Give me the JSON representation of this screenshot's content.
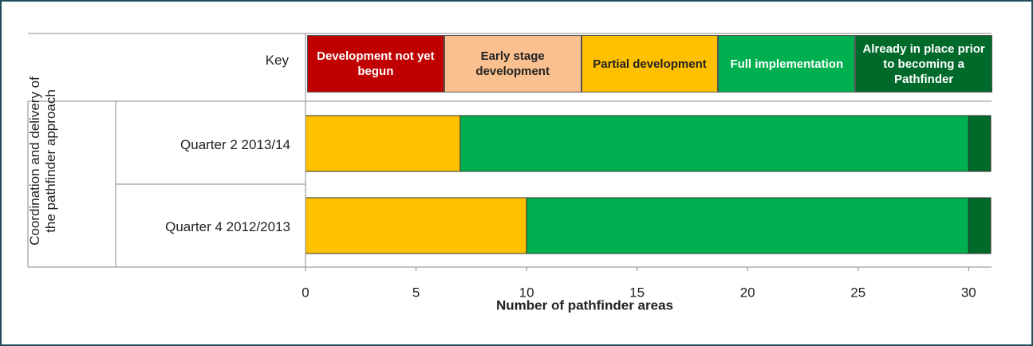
{
  "chart_data": {
    "type": "stacked_barh",
    "key_label": "Key",
    "group_label": "Coordination and delivery of the pathfinder approach",
    "categories": [
      "Quarter 2 2013/14",
      "Quarter 4  2012/2013"
    ],
    "series": [
      {
        "name": "Development not yet begun",
        "color": "#c00000",
        "text_color": "#ffffff",
        "values": [
          0,
          0
        ]
      },
      {
        "name": "Early stage development",
        "color": "#fac090",
        "text_color": "#222222",
        "values": [
          0,
          0
        ]
      },
      {
        "name": "Partial development",
        "color": "#ffc000",
        "text_color": "#222222",
        "values": [
          7,
          10
        ]
      },
      {
        "name": "Full implementation",
        "color": "#00b050",
        "text_color": "#ffffff",
        "values": [
          23,
          20
        ]
      },
      {
        "name": "Already in place prior to becoming a Pathfinder",
        "color": "#006a2b",
        "text_color": "#ffffff",
        "values": [
          1,
          1
        ]
      }
    ],
    "xlim": [
      0,
      31
    ],
    "xticks": [
      0,
      5,
      10,
      15,
      20,
      25,
      30
    ],
    "xlabel": "Number of pathfinder areas"
  }
}
